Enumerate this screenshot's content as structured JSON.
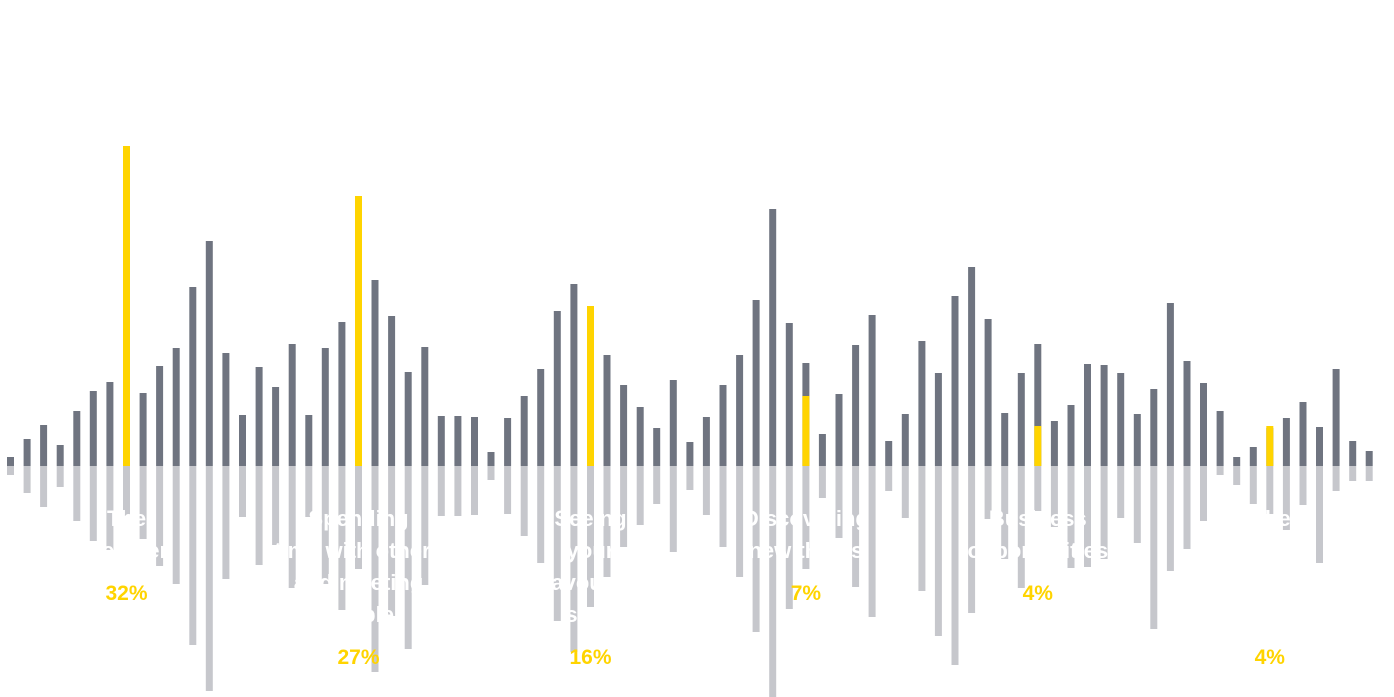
{
  "colors": {
    "background": "#ffffff",
    "bar_up": "#6f7480",
    "bar_down": "#c6c7cc",
    "highlight": "#ffd400",
    "label_text": "#ffffff"
  },
  "chart_data": {
    "type": "bar",
    "title": "",
    "xlabel": "",
    "ylabel": "",
    "categories": [
      {
        "lines": [
          "The",
          "weather"
        ],
        "percent_label": "32%",
        "value": 32
      },
      {
        "lines": [
          "Spending",
          "time with others",
          "and meeting",
          "people"
        ],
        "percent_label": "27%",
        "value": 27
      },
      {
        "lines": [
          "Seeing",
          "your",
          "favourite",
          "sites"
        ],
        "percent_label": "16%",
        "value": 16
      },
      {
        "lines": [
          "Discovering",
          "new things"
        ],
        "percent_label": "7%",
        "value": 7
      },
      {
        "lines": [
          "Business",
          "opportunities"
        ],
        "percent_label": "4%",
        "value": 4
      },
      {
        "lines": [
          "Other"
        ],
        "percent_label": "4%",
        "value": 4
      }
    ],
    "decorative_bars": {
      "up": [
        9,
        27,
        41,
        21,
        55,
        75,
        84,
        50,
        73,
        100,
        118,
        179,
        225,
        113,
        51,
        99,
        79,
        122,
        51,
        118,
        144,
        103,
        186,
        150,
        94,
        119,
        50,
        50,
        49,
        14,
        48,
        70,
        97,
        155,
        182,
        141,
        111,
        81,
        59,
        38,
        86,
        24,
        49,
        81,
        111,
        166,
        257,
        143,
        103,
        32,
        72,
        121,
        151,
        25,
        52,
        125,
        93,
        170,
        199,
        147,
        53,
        93,
        122,
        45,
        61,
        102,
        101,
        93,
        52,
        77,
        163,
        105,
        83,
        55,
        9,
        19,
        38,
        48,
        64,
        39,
        97,
        25,
        15
      ],
      "down": [
        9,
        27,
        41,
        21,
        55,
        75,
        84,
        50,
        73,
        100,
        118,
        179,
        225,
        113,
        51,
        99,
        79,
        122,
        51,
        118,
        144,
        103,
        206,
        150,
        183,
        119,
        50,
        50,
        49,
        14,
        48,
        70,
        97,
        155,
        186,
        141,
        111,
        81,
        59,
        38,
        86,
        24,
        49,
        81,
        111,
        166,
        231,
        143,
        103,
        32,
        72,
        121,
        151,
        25,
        52,
        125,
        170,
        199,
        147,
        53,
        93,
        122,
        45,
        61,
        102,
        101,
        93,
        52,
        77,
        163,
        105,
        83,
        55,
        9,
        19,
        38,
        48,
        64,
        39,
        97,
        25,
        15,
        15
      ],
      "highlight_indices": [
        7,
        21,
        35,
        48,
        62,
        76
      ]
    }
  }
}
